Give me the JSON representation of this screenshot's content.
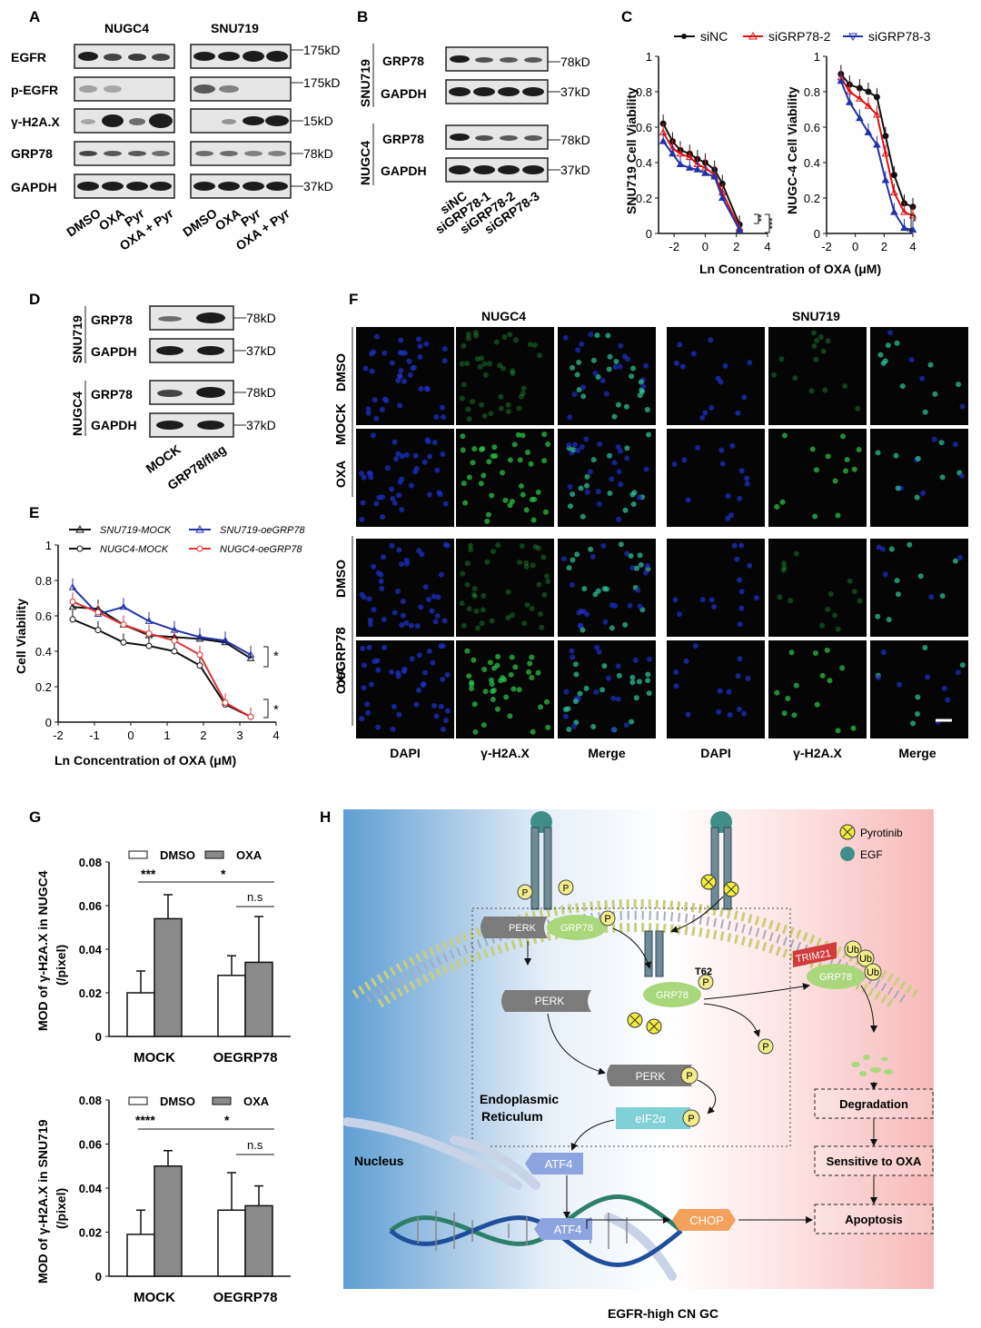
{
  "panels": {
    "A": {
      "letter": "A",
      "cell_lines": [
        "NUGC4",
        "SNU719"
      ],
      "rows": [
        "EGFR",
        "p-EGFR",
        "γ-H2A.X",
        "GRP78",
        "GAPDH"
      ],
      "mw": [
        "175kD",
        "175kD",
        "15kD",
        "78kD",
        "37kD"
      ],
      "lanes": [
        "DMSO",
        "OXA",
        "Pyr",
        "OXA + Pyr"
      ]
    },
    "B": {
      "letter": "B",
      "groups": [
        "SNU719",
        "NUGC4"
      ],
      "rows": [
        "GRP78",
        "GAPDH"
      ],
      "mw": [
        "78kD",
        "37kD"
      ],
      "lanes": [
        "siNC",
        "siGRP78-1",
        "siGRP78-2",
        "siGRP78-3"
      ]
    },
    "C": {
      "letter": "C",
      "legend": [
        "siNC",
        "siGRP78-2",
        "siGRP78-3"
      ],
      "ylabel_left": "SNU719 Cell Viability",
      "ylabel_right": "NUGC-4 Cell Viability",
      "xlabel": "Ln Concentration of OXA (μM)",
      "sig_left": [
        "**",
        "***"
      ],
      "sig_right": "**"
    },
    "D": {
      "letter": "D",
      "groups": [
        "SNU719",
        "NUGC4"
      ],
      "rows": [
        "GRP78",
        "GAPDH"
      ],
      "mw": [
        "78kD",
        "37kD"
      ],
      "lanes": [
        "MOCK",
        "GRP78/flag"
      ]
    },
    "E": {
      "letter": "E",
      "legend": [
        "SNU719-MOCK",
        "SNU719-oeGRP78",
        "NUGC4-MOCK",
        "NUGC4-oeGRP78"
      ],
      "ylabel": "Cell Viability",
      "xlabel": "Ln Concentration of OXA (μM)",
      "sig": [
        "*",
        "*"
      ]
    },
    "F": {
      "letter": "F",
      "cell_lines": [
        "NUGC4",
        "SNU719"
      ],
      "groups": [
        "MOCK",
        "oeGRP78"
      ],
      "treatments": [
        "DMSO",
        "OXA"
      ],
      "columns": [
        "DAPI",
        "γ-H2A.X",
        "Merge",
        "DAPI",
        "γ-H2A.X",
        "Merge"
      ]
    },
    "G": {
      "letter": "G",
      "legend": [
        "DMSO",
        "OXA"
      ],
      "top_ylabel_1": "MOD of γ-H2A.X in NUGC4",
      "top_ylabel_2": "(/pixel)",
      "bottom_ylabel_1": "MOD of γ-H2A.X in SNU719",
      "bottom_ylabel_2": "(/pixel)",
      "xcats": [
        "MOCK",
        "OEGRP78"
      ],
      "top_sig": [
        "***",
        "*",
        "n.s"
      ],
      "bottom_sig": [
        "****",
        "*",
        "n.s"
      ]
    },
    "H": {
      "letter": "H",
      "legend": [
        "Pyrotinib",
        "EGF"
      ],
      "labels": {
        "perk": "PERK",
        "grp78": "GRP78",
        "t62": "T62",
        "trim21": "TRIM21",
        "ub": "Ub",
        "p": "P",
        "er_1": "Endoplasmic",
        "er_2": "Reticulum",
        "eif2a": "eIF2α",
        "atf4": "ATF4",
        "nucleus": "Nucleus",
        "chop": "CHOP",
        "degradation": "Degradation",
        "sensitive": "Sensitive to OXA",
        "apoptosis": "Apoptosis"
      },
      "caption": "EGFR-high CN GC"
    }
  },
  "chart_data": [
    {
      "type": "line",
      "panel": "C-left",
      "x": [
        -2.7,
        -2.1,
        -1.6,
        -1.0,
        -0.5,
        0.0,
        0.6,
        1.1,
        2.2
      ],
      "xlim": [
        -3,
        4
      ],
      "ylim": [
        0,
        1
      ],
      "series": [
        {
          "name": "siNC",
          "values": [
            0.62,
            0.52,
            0.47,
            0.45,
            0.42,
            0.4,
            0.36,
            0.28,
            0.05
          ]
        },
        {
          "name": "siGRP78-2",
          "values": [
            0.57,
            0.48,
            0.45,
            0.43,
            0.39,
            0.37,
            0.33,
            0.23,
            0.03
          ]
        },
        {
          "name": "siGRP78-3",
          "values": [
            0.52,
            0.45,
            0.39,
            0.37,
            0.36,
            0.34,
            0.32,
            0.2,
            0.02
          ]
        }
      ]
    },
    {
      "type": "line",
      "panel": "C-right",
      "x": [
        -1.0,
        -0.4,
        0.3,
        0.9,
        1.5,
        2.1,
        2.7,
        3.4,
        4.0
      ],
      "xlim": [
        -2,
        4
      ],
      "ylim": [
        0,
        1
      ],
      "series": [
        {
          "name": "siNC",
          "values": [
            0.9,
            0.84,
            0.82,
            0.8,
            0.77,
            0.55,
            0.33,
            0.17,
            0.15
          ]
        },
        {
          "name": "siGRP78-2",
          "values": [
            0.88,
            0.8,
            0.76,
            0.72,
            0.67,
            0.45,
            0.23,
            0.12,
            0.1
          ]
        },
        {
          "name": "siGRP78-3",
          "values": [
            0.86,
            0.74,
            0.65,
            0.57,
            0.5,
            0.3,
            0.12,
            0.03,
            0.02
          ]
        }
      ]
    },
    {
      "type": "line",
      "panel": "E",
      "x": [
        -1.6,
        -0.9,
        -0.2,
        0.5,
        1.2,
        1.9,
        2.6,
        3.3
      ],
      "xlim": [
        -2,
        4
      ],
      "ylim": [
        0,
        1
      ],
      "series": [
        {
          "name": "SNU719-MOCK",
          "values": [
            0.65,
            0.64,
            0.55,
            0.49,
            0.48,
            0.47,
            0.45,
            0.36
          ]
        },
        {
          "name": "SNU719-oeGRP78",
          "values": [
            0.76,
            0.61,
            0.65,
            0.57,
            0.52,
            0.48,
            0.46,
            0.38
          ]
        },
        {
          "name": "NUGC4-MOCK",
          "values": [
            0.58,
            0.52,
            0.45,
            0.43,
            0.4,
            0.32,
            0.1,
            0.03
          ]
        },
        {
          "name": "NUGC4-oeGRP78",
          "values": [
            0.68,
            0.62,
            0.55,
            0.5,
            0.46,
            0.38,
            0.11,
            0.03
          ]
        }
      ]
    },
    {
      "type": "bar",
      "panel": "G-top",
      "categories": [
        "MOCK",
        "OEGRP78"
      ],
      "ylim": [
        0,
        0.08
      ],
      "series": [
        {
          "name": "DMSO",
          "values": [
            0.02,
            0.028
          ],
          "errors": [
            0.01,
            0.009
          ]
        },
        {
          "name": "OXA",
          "values": [
            0.054,
            0.034
          ],
          "errors": [
            0.011,
            0.021
          ]
        }
      ]
    },
    {
      "type": "bar",
      "panel": "G-bottom",
      "categories": [
        "MOCK",
        "OEGRP78"
      ],
      "ylim": [
        0,
        0.08
      ],
      "series": [
        {
          "name": "DMSO",
          "values": [
            0.019,
            0.03
          ],
          "errors": [
            0.011,
            0.017
          ]
        },
        {
          "name": "OXA",
          "values": [
            0.05,
            0.032
          ],
          "errors": [
            0.007,
            0.009
          ]
        }
      ]
    }
  ]
}
